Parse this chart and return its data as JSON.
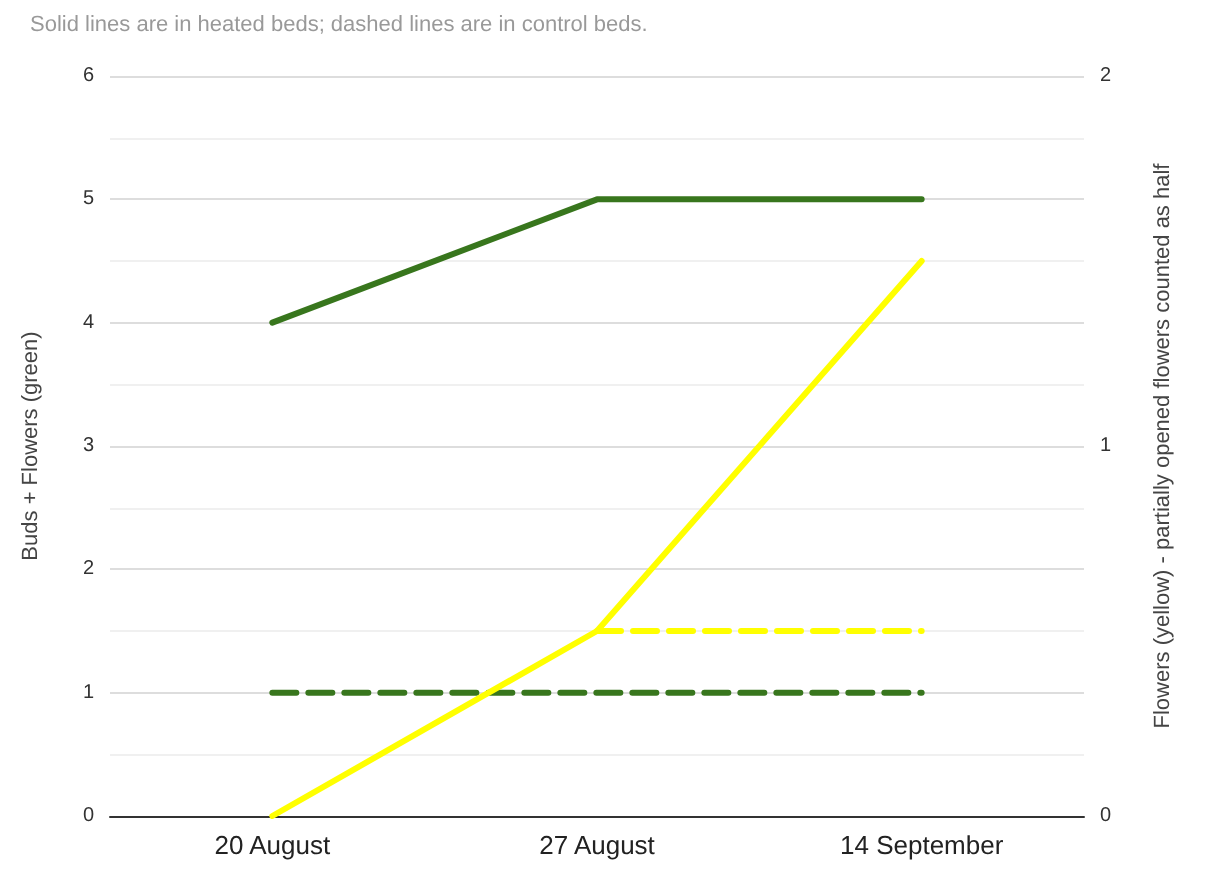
{
  "chart_data": {
    "type": "line",
    "subtitle": "Solid lines are in heated beds; dashed lines are in control beds.",
    "ylabel": "Buds + Flowers (green)",
    "y2label": "Flowers (yellow) - partially opened flowers counted as half",
    "categories": [
      "20 August",
      "27 August",
      "14 September"
    ],
    "series": [
      {
        "color": "#38761d",
        "values": [
          4,
          5,
          5
        ],
        "line_style": "solid"
      },
      {
        "color": "#38761d",
        "values": [
          1,
          1,
          1
        ],
        "line_style": "dashed"
      },
      {
        "color": "#ffff00",
        "values": [
          0,
          0.5,
          1.5
        ],
        "line_style": "solid",
        "axis": "y2"
      },
      {
        "color": "#ffff00",
        "values": [
          null,
          0.5,
          0.5
        ],
        "line_style": "dashed",
        "axis": "y2"
      }
    ],
    "ylim": [
      0,
      6
    ],
    "yticks": [
      0,
      1,
      2,
      3,
      4,
      5,
      6
    ],
    "y2lim": [
      0,
      2
    ],
    "y2ticks": [
      0,
      1,
      2
    ],
    "grid": "y",
    "marker": "none"
  }
}
